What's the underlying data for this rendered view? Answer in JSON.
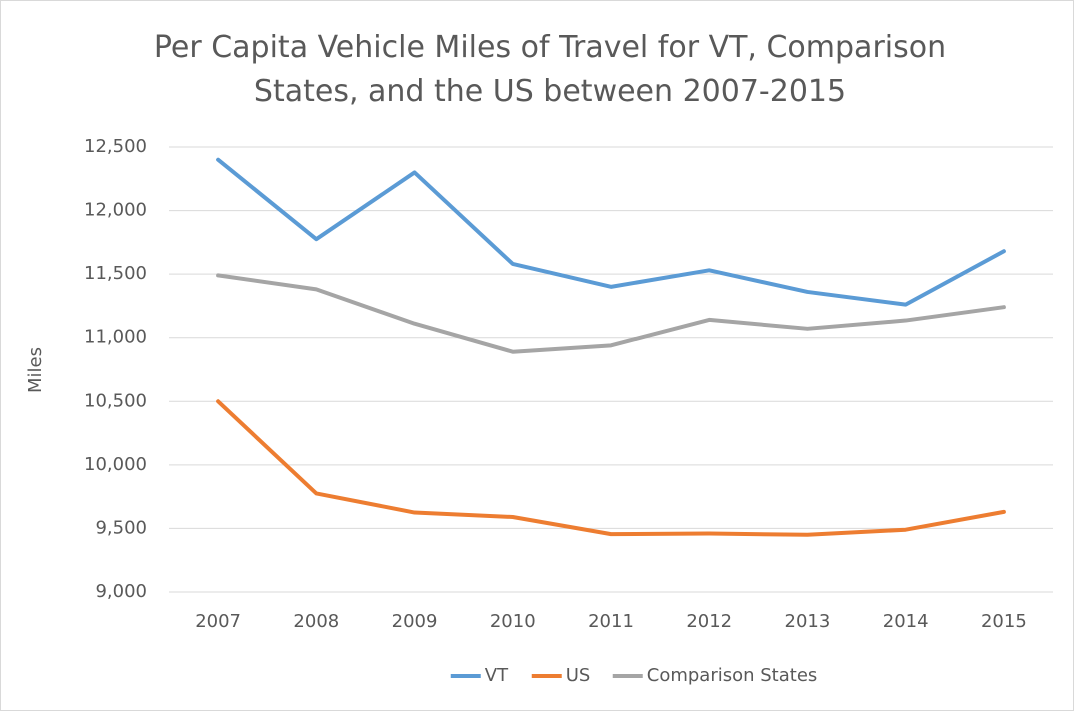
{
  "chart_data": {
    "type": "line",
    "title": "Per Capita Vehicle Miles of Travel for VT, Comparison States, and the US between 2007-2015",
    "y_label": "Miles",
    "categories": [
      "2007",
      "2008",
      "2009",
      "2010",
      "2011",
      "2012",
      "2013",
      "2014",
      "2015"
    ],
    "series": [
      {
        "name": "VT",
        "color": "#5b9bd5",
        "values": [
          12400,
          11775,
          12300,
          11580,
          11400,
          11530,
          11360,
          11260,
          11680
        ]
      },
      {
        "name": "US",
        "color": "#ed7d31",
        "values": [
          10500,
          9775,
          9625,
          9590,
          9455,
          9460,
          9450,
          9490,
          9630
        ]
      },
      {
        "name": "Comparison States",
        "color": "#a5a5a5",
        "values": [
          11490,
          11380,
          11110,
          10890,
          10940,
          11140,
          11070,
          11135,
          11240
        ]
      }
    ],
    "ylim": [
      9000,
      12500
    ],
    "yticks": [
      {
        "value": 9000,
        "label": "9,000"
      },
      {
        "value": 9500,
        "label": "9,500"
      },
      {
        "value": 10000,
        "label": "10,000"
      },
      {
        "value": 10500,
        "label": "10,500"
      },
      {
        "value": 11000,
        "label": "11,000"
      },
      {
        "value": 11500,
        "label": "11,500"
      },
      {
        "value": 12000,
        "label": "12,000"
      },
      {
        "value": 12500,
        "label": "12,500"
      }
    ],
    "grid": true,
    "legend": "bottom"
  }
}
